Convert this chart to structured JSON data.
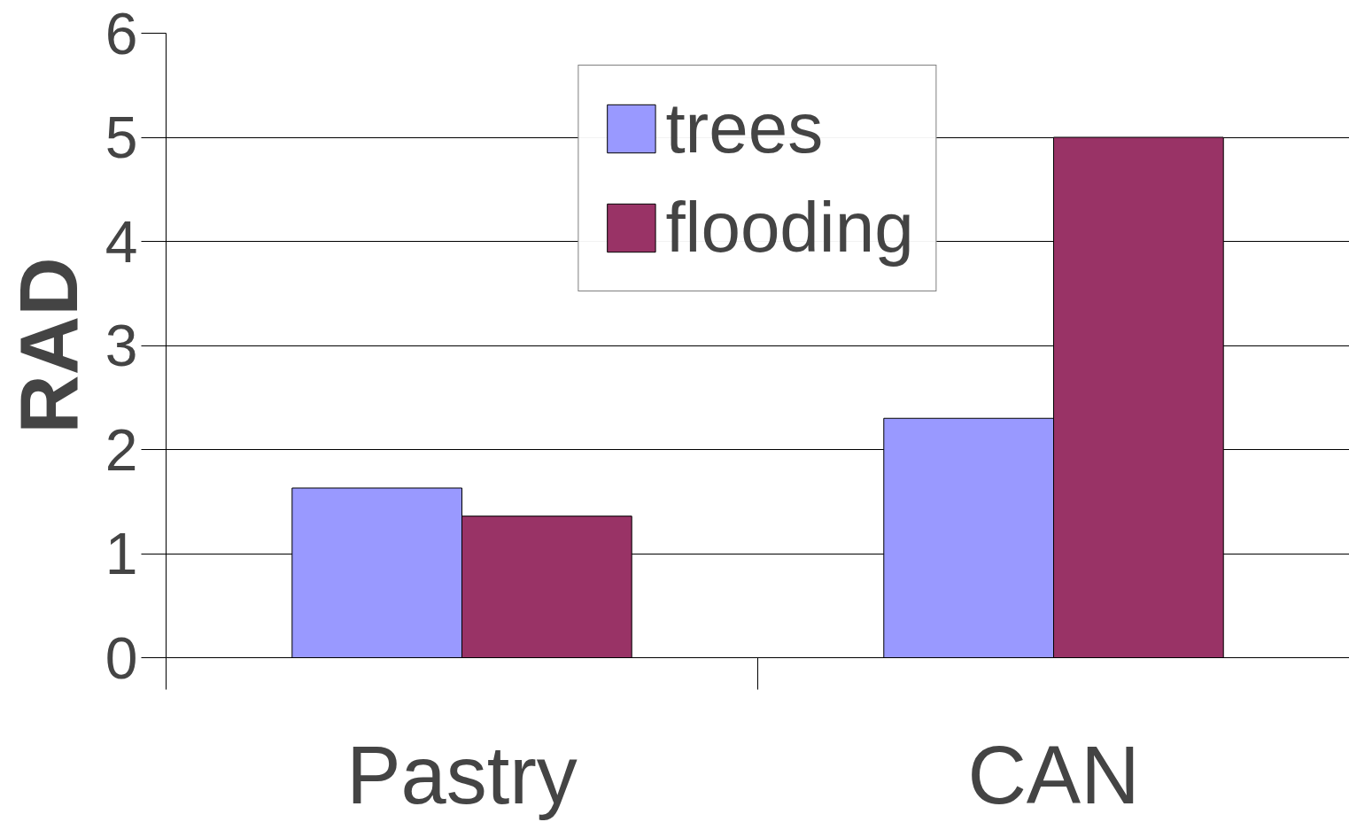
{
  "chart_data": {
    "type": "bar",
    "ylabel": "RAD",
    "categories": [
      "Pastry",
      "CAN"
    ],
    "series": [
      {
        "name": "trees",
        "color": "#9999ff",
        "values": [
          1.63,
          2.3
        ]
      },
      {
        "name": "flooding",
        "color": "#993366",
        "values": [
          1.36,
          5.0
        ]
      }
    ],
    "ylim": [
      0,
      6
    ],
    "yticks": [
      0,
      1,
      2,
      3,
      4,
      5,
      6
    ],
    "grid": "y",
    "legend": "top"
  }
}
